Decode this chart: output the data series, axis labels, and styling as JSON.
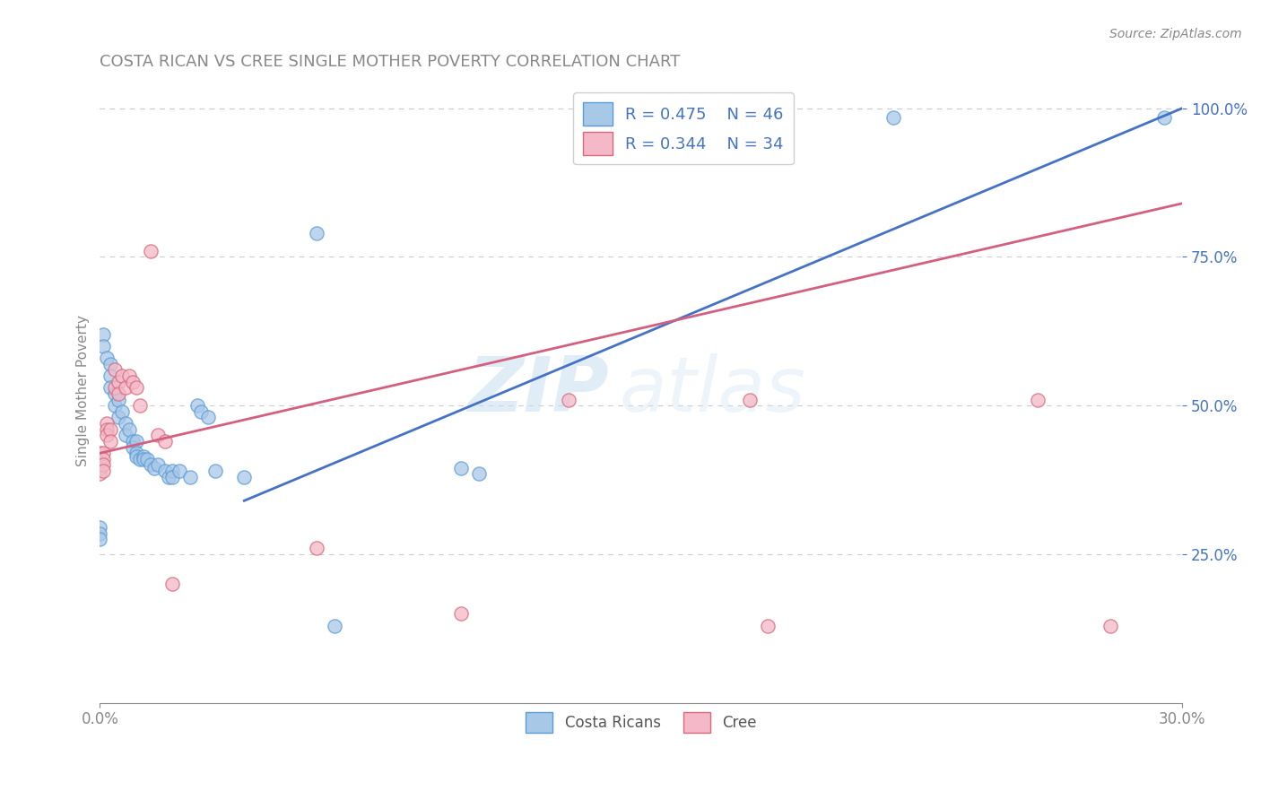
{
  "title": "COSTA RICAN VS CREE SINGLE MOTHER POVERTY CORRELATION CHART",
  "source": "Source: ZipAtlas.com",
  "ylabel": "Single Mother Poverty",
  "xlim": [
    0.0,
    0.3
  ],
  "ylim": [
    0.0,
    1.05
  ],
  "ytick_labels": [
    "25.0%",
    "50.0%",
    "75.0%",
    "100.0%"
  ],
  "ytick_vals": [
    0.25,
    0.5,
    0.75,
    1.0
  ],
  "legend_label1": "Costa Ricans",
  "legend_label2": "Cree",
  "blue_color": "#a8c8e8",
  "blue_edge": "#5b9bd5",
  "pink_color": "#f4b8c8",
  "pink_edge": "#d4697a",
  "blue_line_color": "#4472c4",
  "pink_line_color": "#d46080",
  "blue_scatter": [
    [
      0.0,
      0.295
    ],
    [
      0.0,
      0.285
    ],
    [
      0.0,
      0.275
    ],
    [
      0.001,
      0.62
    ],
    [
      0.001,
      0.6
    ],
    [
      0.002,
      0.58
    ],
    [
      0.003,
      0.57
    ],
    [
      0.003,
      0.55
    ],
    [
      0.003,
      0.53
    ],
    [
      0.004,
      0.52
    ],
    [
      0.004,
      0.5
    ],
    [
      0.005,
      0.51
    ],
    [
      0.005,
      0.48
    ],
    [
      0.006,
      0.49
    ],
    [
      0.007,
      0.47
    ],
    [
      0.007,
      0.45
    ],
    [
      0.008,
      0.46
    ],
    [
      0.009,
      0.44
    ],
    [
      0.009,
      0.43
    ],
    [
      0.01,
      0.44
    ],
    [
      0.01,
      0.42
    ],
    [
      0.01,
      0.415
    ],
    [
      0.011,
      0.41
    ],
    [
      0.012,
      0.415
    ],
    [
      0.012,
      0.41
    ],
    [
      0.013,
      0.41
    ],
    [
      0.014,
      0.4
    ],
    [
      0.015,
      0.395
    ],
    [
      0.016,
      0.4
    ],
    [
      0.018,
      0.39
    ],
    [
      0.019,
      0.38
    ],
    [
      0.02,
      0.39
    ],
    [
      0.02,
      0.38
    ],
    [
      0.022,
      0.39
    ],
    [
      0.025,
      0.38
    ],
    [
      0.027,
      0.5
    ],
    [
      0.028,
      0.49
    ],
    [
      0.03,
      0.48
    ],
    [
      0.032,
      0.39
    ],
    [
      0.04,
      0.38
    ],
    [
      0.06,
      0.79
    ],
    [
      0.065,
      0.13
    ],
    [
      0.1,
      0.395
    ],
    [
      0.105,
      0.385
    ],
    [
      0.22,
      0.985
    ],
    [
      0.295,
      0.985
    ]
  ],
  "pink_scatter": [
    [
      0.0,
      0.42
    ],
    [
      0.0,
      0.405
    ],
    [
      0.0,
      0.395
    ],
    [
      0.0,
      0.385
    ],
    [
      0.001,
      0.42
    ],
    [
      0.001,
      0.41
    ],
    [
      0.001,
      0.4
    ],
    [
      0.001,
      0.39
    ],
    [
      0.002,
      0.47
    ],
    [
      0.002,
      0.46
    ],
    [
      0.002,
      0.45
    ],
    [
      0.003,
      0.46
    ],
    [
      0.003,
      0.44
    ],
    [
      0.004,
      0.56
    ],
    [
      0.004,
      0.53
    ],
    [
      0.005,
      0.54
    ],
    [
      0.005,
      0.52
    ],
    [
      0.006,
      0.55
    ],
    [
      0.007,
      0.53
    ],
    [
      0.008,
      0.55
    ],
    [
      0.009,
      0.54
    ],
    [
      0.01,
      0.53
    ],
    [
      0.011,
      0.5
    ],
    [
      0.014,
      0.76
    ],
    [
      0.016,
      0.45
    ],
    [
      0.018,
      0.44
    ],
    [
      0.02,
      0.2
    ],
    [
      0.06,
      0.26
    ],
    [
      0.1,
      0.15
    ],
    [
      0.13,
      0.51
    ],
    [
      0.18,
      0.51
    ],
    [
      0.185,
      0.13
    ],
    [
      0.26,
      0.51
    ],
    [
      0.28,
      0.13
    ]
  ],
  "blue_line_x": [
    0.04,
    0.3
  ],
  "blue_line_y": [
    0.34,
    1.0
  ],
  "pink_line_x": [
    0.0,
    0.3
  ],
  "pink_line_y": [
    0.42,
    0.84
  ],
  "watermark_zip": "ZIP",
  "watermark_atlas": "atlas",
  "background_color": "#ffffff",
  "grid_color": "#cccccc",
  "title_color": "#888888",
  "source_color": "#888888",
  "axis_color": "#888888",
  "legend_text_color": "#4472c4"
}
